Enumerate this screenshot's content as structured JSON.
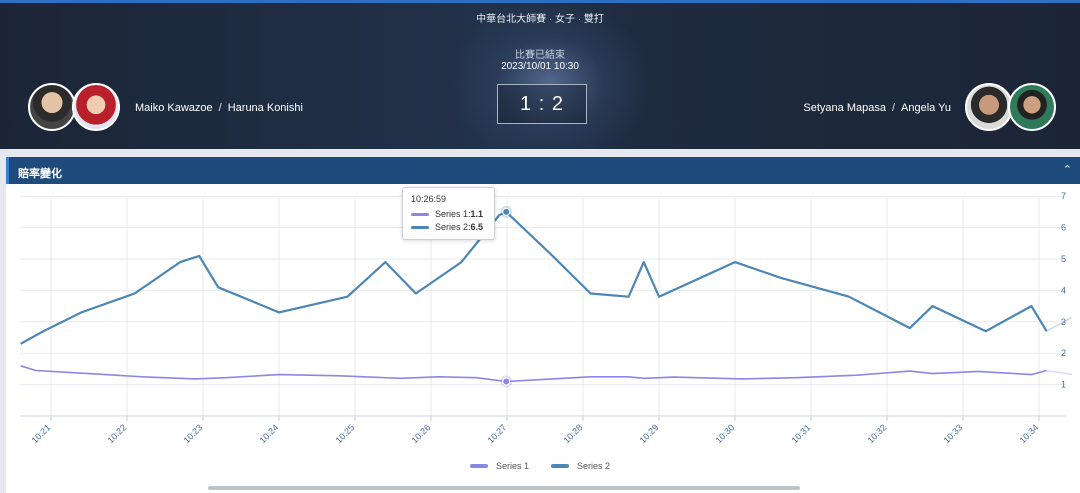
{
  "header": {
    "event": "中華台北大師賽 · 女子 · 雙打",
    "status": "比賽已結束",
    "datetime": "2023/10/01 10:30",
    "score": "1 : 2",
    "left_team": {
      "player1": "Maiko Kawazoe",
      "player2": "Haruna Konishi",
      "separator": "/"
    },
    "right_team": {
      "player1": "Setyana Mapasa",
      "player2": "Angela Yu",
      "separator": "/"
    }
  },
  "panel": {
    "title": "賠率變化",
    "collapse_icon": "chevron-up-icon"
  },
  "tooltip": {
    "time": "10:26:59",
    "s1_label": "Series 1: ",
    "s1_value": "1.1",
    "s2_label": "Series 2: ",
    "s2_value": "6.5"
  },
  "legend": {
    "series1": "Series 1",
    "series2": "Series 2"
  },
  "colors": {
    "series1": "#8c86e6",
    "series2": "#4b86b4",
    "panel_header": "#1f4a7c"
  },
  "chart_data": {
    "type": "line",
    "x_ticks": [
      "10:21",
      "10:22",
      "10:23",
      "10:24",
      "10:25",
      "10:26",
      "10:27",
      "10:28",
      "10:29",
      "10:30",
      "10:31",
      "10:32",
      "10:33",
      "10:34"
    ],
    "y_ticks": [
      1,
      2,
      3,
      4,
      5,
      6,
      7
    ],
    "ylim": [
      0,
      7
    ],
    "grid": true,
    "legend_position": "bottom",
    "series": [
      {
        "name": "Series 1",
        "x": [
          20.6,
          20.8,
          21.5,
          22.2,
          22.9,
          23.3,
          24.0,
          24.8,
          25.6,
          26.1,
          26.6,
          26.99,
          27.6,
          28.1,
          28.6,
          28.8,
          29.2,
          30.1,
          30.8,
          31.6,
          32.3,
          32.6,
          33.2,
          33.9,
          34.1
        ],
        "y": [
          1.6,
          1.45,
          1.35,
          1.25,
          1.18,
          1.22,
          1.32,
          1.28,
          1.2,
          1.25,
          1.22,
          1.1,
          1.18,
          1.25,
          1.25,
          1.2,
          1.24,
          1.18,
          1.22,
          1.3,
          1.43,
          1.35,
          1.42,
          1.32,
          1.45
        ]
      },
      {
        "name": "Series 2",
        "x": [
          20.6,
          20.9,
          21.4,
          22.1,
          22.7,
          22.95,
          23.2,
          24.0,
          24.9,
          25.4,
          25.8,
          26.4,
          26.9,
          26.99,
          27.6,
          28.1,
          28.6,
          28.8,
          29.0,
          30.0,
          30.6,
          31.5,
          32.3,
          32.6,
          33.3,
          33.9,
          34.1
        ],
        "y": [
          2.3,
          2.7,
          3.3,
          3.9,
          4.9,
          5.1,
          4.1,
          3.3,
          3.8,
          4.9,
          3.9,
          4.9,
          6.4,
          6.5,
          5.1,
          3.9,
          3.8,
          4.9,
          3.8,
          4.9,
          4.4,
          3.8,
          2.8,
          3.5,
          2.7,
          3.5,
          2.7
        ]
      }
    ],
    "highlight_x": "10:26:59"
  }
}
